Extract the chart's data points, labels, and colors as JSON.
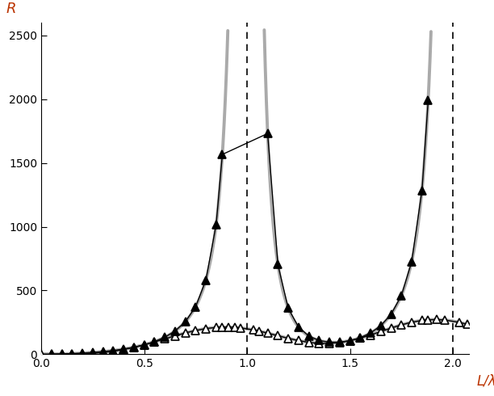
{
  "title": "",
  "xlabel": "L/λ",
  "ylabel": "R",
  "xlim": [
    0,
    2.08
  ],
  "ylim": [
    0,
    2600
  ],
  "xticks": [
    0,
    0.5,
    1,
    1.5,
    2
  ],
  "yticks": [
    0,
    500,
    1000,
    1500,
    2000,
    2500
  ],
  "dashed_vlines": [
    1.0,
    2.0
  ],
  "background_color": "#ffffff",
  "gray_color": "#aaaaaa",
  "black_color": "#000000",
  "marker_size": 7
}
